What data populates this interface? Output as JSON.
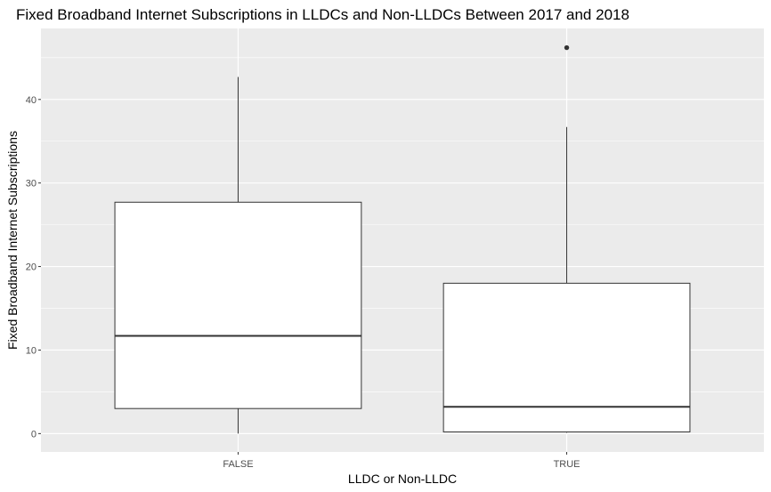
{
  "chart_data": {
    "type": "boxplot",
    "title": "Fixed Broadband Internet Subscriptions in LLDCs and Non-LLDCs Between 2017 and 2018",
    "xlabel": "LLDC or Non-LLDC",
    "ylabel": "Fixed Broadband Internet Subscriptions",
    "ylim": [
      -2.2,
      48.5
    ],
    "yticks": [
      0,
      10,
      20,
      30,
      40
    ],
    "grid": true,
    "categories": [
      "FALSE",
      "TRUE"
    ],
    "boxes": [
      {
        "category": "FALSE",
        "min": 0.0,
        "q1": 3.0,
        "median": 11.7,
        "q3": 27.7,
        "max": 42.7,
        "outliers": []
      },
      {
        "category": "TRUE",
        "min": 0.1,
        "q1": 0.2,
        "median": 3.2,
        "q3": 18.0,
        "max": 36.7,
        "outliers": [
          46.2
        ]
      }
    ],
    "colors": {
      "panel": "#ebebeb",
      "grid": "#ffffff",
      "box_fill": "#ffffff",
      "box_line": "#333333"
    }
  }
}
